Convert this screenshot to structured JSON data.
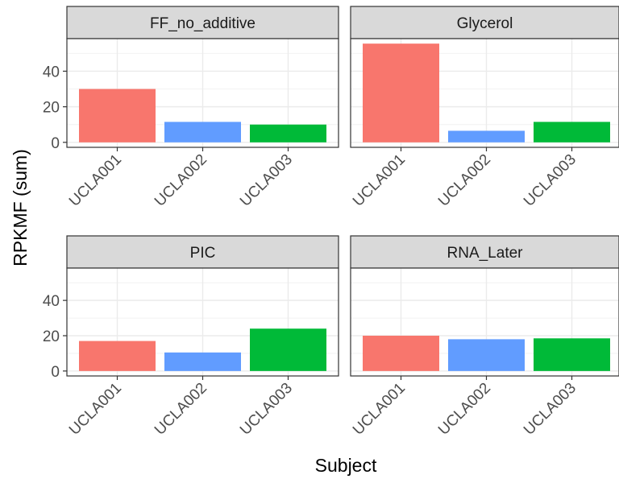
{
  "chart_data": {
    "type": "bar",
    "facets": [
      "FF_no_additive",
      "Glycerol",
      "PIC",
      "RNA_Later"
    ],
    "categories": [
      "UCLA001",
      "UCLA002",
      "UCLA003"
    ],
    "colors": [
      "#F8766D",
      "#619CFF",
      "#00BA38"
    ],
    "values": {
      "FF_no_additive": [
        30.0,
        11.5,
        10.0
      ],
      "Glycerol": [
        55.5,
        6.5,
        11.5
      ],
      "PIC": [
        17.0,
        10.5,
        24.0
      ],
      "RNA_Later": [
        20.0,
        18.0,
        18.5
      ]
    },
    "yticks": [
      0,
      20,
      40
    ],
    "ylim": [
      -2.8,
      58.3
    ],
    "xlabel": "Subject",
    "ylabel": "RPKMF (sum)",
    "grid": true,
    "legend": "none"
  }
}
